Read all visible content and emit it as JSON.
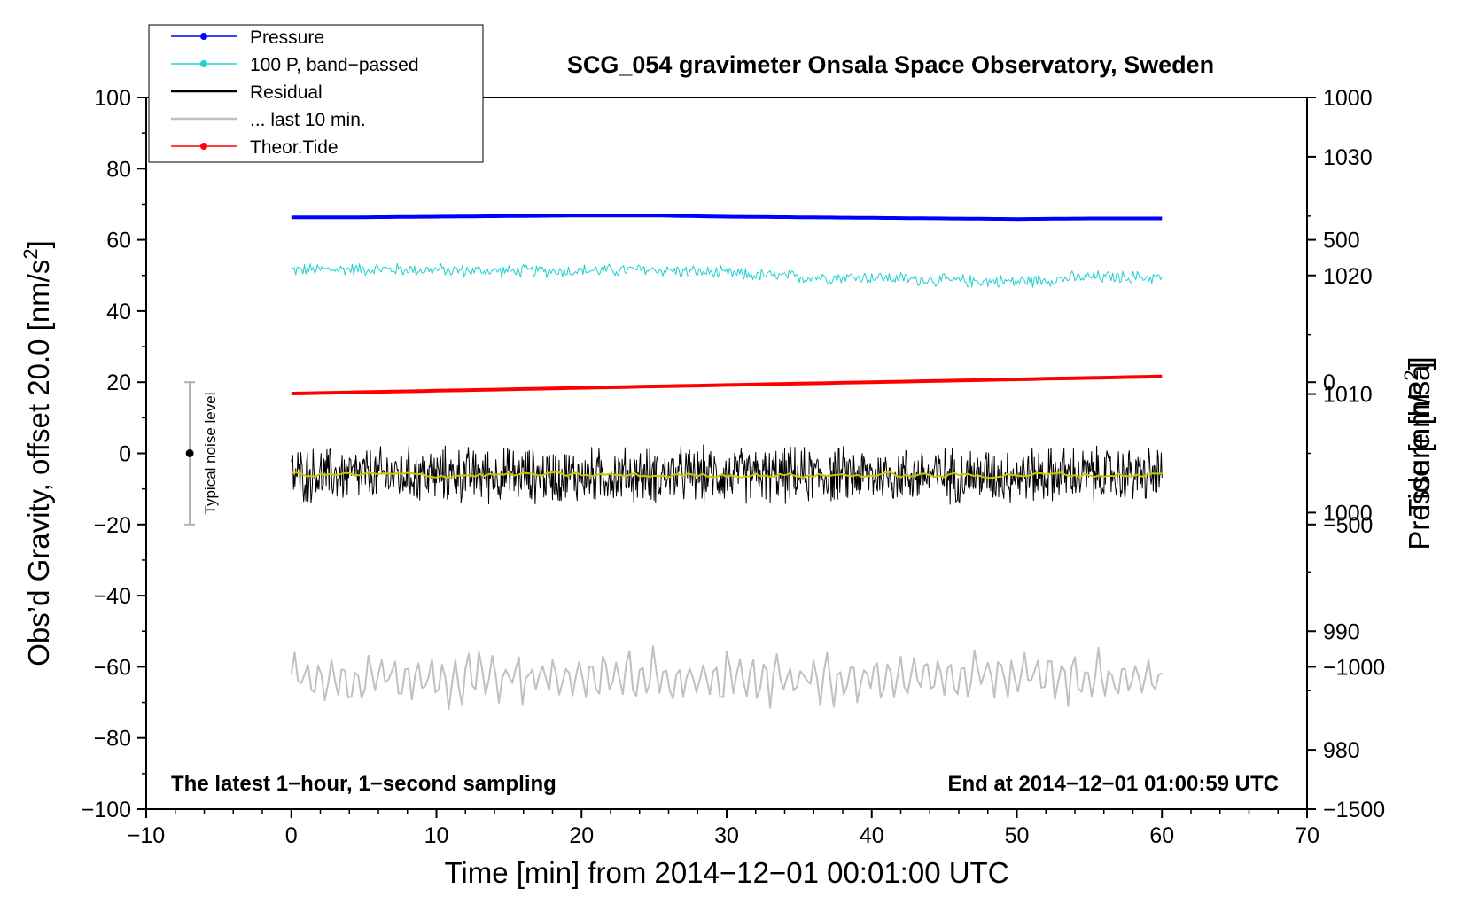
{
  "chart_data": {
    "type": "line",
    "title": "SCG_054 gravimeter Onsala Space Observatory, Sweden",
    "xlabel": "Time [min] from 2014−12−01 00:01:00 UTC",
    "ylabel_left": "Obs’d Gravity, offset 20.0 [nm/s",
    "ylabel_left_sup": "2",
    "ylabel_left_close": "]",
    "ylabel_right_top": "Pressure [hPa]",
    "ylabel_right_bottom": "Tide [nm/s",
    "ylabel_right_bottom_sup": "2",
    "ylabel_right_bottom_close": "]",
    "xlim": [
      -10,
      70
    ],
    "ylim_left": [
      -100,
      100
    ],
    "pressure_axis_range": [
      975,
      1035
    ],
    "tide_axis_range": [
      -1500,
      1000
    ],
    "grid": false,
    "legend_position": "top-left",
    "x_ticks": [
      -10,
      0,
      10,
      20,
      30,
      40,
      50,
      60,
      70
    ],
    "x_tick_labels": [
      "−10",
      "0",
      "10",
      "20",
      "30",
      "40",
      "50",
      "60",
      "70"
    ],
    "y_left_ticks": [
      -100,
      -80,
      -60,
      -40,
      -20,
      0,
      20,
      40,
      60,
      80,
      100
    ],
    "y_left_tick_labels": [
      "−100",
      "−80",
      "−60",
      "−40",
      "−20",
      "0",
      "20",
      "40",
      "60",
      "80",
      "100"
    ],
    "y_pressure_ticks": [
      980,
      990,
      1000,
      1010,
      1020,
      1030
    ],
    "y_pressure_tick_labels": [
      "980",
      "990",
      "1000",
      "1010",
      "1020",
      "1030"
    ],
    "y_tide_ticks": [
      -1500,
      -1000,
      -500,
      0,
      500,
      1000
    ],
    "y_tide_tick_labels": [
      "−1500",
      "−1000",
      "−500",
      "0",
      "500",
      "1000"
    ],
    "legend": [
      {
        "label": "Pressure",
        "color": "#0000ff",
        "marker": true
      },
      {
        "label": "100 P, band−passed",
        "color": "#20d0d0",
        "marker": true
      },
      {
        "label": "Residual",
        "color": "#000000",
        "marker": false
      },
      {
        "label": "... last 10 min.",
        "color": "#c0c0c0",
        "marker": false
      },
      {
        "label": "Theor.Tide",
        "color": "#ff0000",
        "marker": true
      }
    ],
    "series": [
      {
        "name": "Pressure",
        "axis": "pressure",
        "color": "#0000ff",
        "x": [
          0,
          5,
          10,
          15,
          20,
          25,
          30,
          35,
          40,
          45,
          50,
          55,
          60
        ],
        "y": [
          1024.9,
          1024.9,
          1024.95,
          1025.0,
          1025.05,
          1025.05,
          1024.95,
          1024.9,
          1024.85,
          1024.8,
          1024.75,
          1024.8,
          1024.8
        ]
      },
      {
        "name": "100 P, band−passed",
        "axis": "left",
        "color": "#20d0d0",
        "x": [
          0,
          5,
          10,
          15,
          20,
          25,
          30,
          35,
          40,
          45,
          50,
          55,
          60
        ],
        "y": [
          51.5,
          51.8,
          51.5,
          51.2,
          51.3,
          51.6,
          50.5,
          49.5,
          49.5,
          48.5,
          48.3,
          49.5,
          49.5
        ],
        "noise_amplitude": 2.2
      },
      {
        "name": "Residual",
        "axis": "left",
        "color": "#000000",
        "x": [
          0,
          5,
          10,
          15,
          20,
          25,
          30,
          35,
          40,
          45,
          50,
          55,
          60
        ],
        "y": [
          -6.2,
          -6.1,
          -6.0,
          -6.1,
          -6.3,
          -6.0,
          -6.1,
          -6.2,
          -6.0,
          -6.1,
          -6.0,
          -6.0,
          -6.2
        ],
        "noise_amplitude": 6.5
      },
      {
        "name": "Residual smoothed",
        "axis": "left",
        "color": "#c8c800",
        "x": [
          0,
          5,
          10,
          15,
          20,
          25,
          30,
          35,
          40,
          45,
          50,
          55,
          60
        ],
        "y": [
          -6.0,
          -6.0,
          -6.2,
          -6.0,
          -6.1,
          -6.3,
          -6.0,
          -6.2,
          -6.1,
          -6.3,
          -6.0,
          -6.1,
          -6.0
        ]
      },
      {
        "name": "... last 10 min.",
        "axis": "left",
        "color": "#c0c0c0",
        "x": [
          0,
          60
        ],
        "y": [
          -63,
          -63
        ],
        "noise_amplitude": 5
      },
      {
        "name": "Theor.Tide",
        "axis": "tide",
        "color": "#ff0000",
        "x": [
          0,
          10,
          20,
          30,
          40,
          50,
          60
        ],
        "y": [
          -40,
          -30,
          -20,
          -10,
          0,
          10,
          20
        ]
      }
    ],
    "noise_indicator": {
      "label": "Typical noise level",
      "x": -7,
      "y_center": 0,
      "y_range": [
        -20,
        20
      ]
    },
    "annotations": {
      "bottom_left": "The latest 1−hour, 1−second sampling",
      "bottom_right": "End at 2014−12−01 01:00:59 UTC"
    }
  }
}
